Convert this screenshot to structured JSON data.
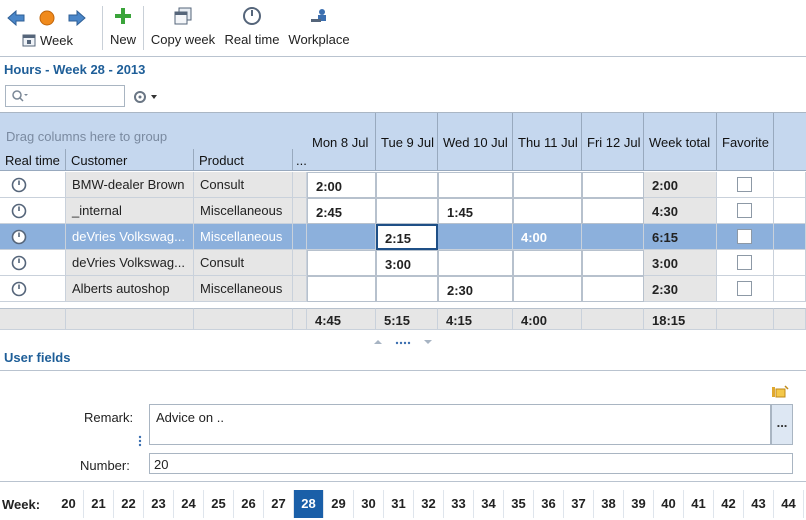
{
  "toolbar": {
    "week_label": "Week",
    "new_label": "New",
    "copy_week_label": "Copy week",
    "real_time_label": "Real time",
    "workplace_label": "Workplace",
    "colors": {
      "back_arrow": "#4a86c8",
      "forward_arrow": "#4a86c8",
      "record": "#f08a1c",
      "new_plus": "#3aa43a"
    }
  },
  "page": {
    "title": "Hours - Week 28 - 2013"
  },
  "search": {
    "placeholder": ""
  },
  "grid": {
    "group_hint": "Drag columns here to group",
    "columns": {
      "real_time": "Real time",
      "customer": "Customer",
      "product": "Product",
      "more": "...",
      "mon": "Mon 8 Jul",
      "tue": "Tue 9 Jul",
      "wed": "Wed 10 Jul",
      "thu": "Thu 11 Jul",
      "fri": "Fri 12 Jul",
      "week_total": "Week total",
      "favorite": "Favorite"
    },
    "rows": [
      {
        "customer": "BMW-dealer Brown",
        "product": "Consult",
        "mon": "2:00",
        "tue": "",
        "wed": "",
        "thu": "",
        "fri": "",
        "total": "2:00",
        "favorite": false
      },
      {
        "customer": "_internal",
        "product": "Miscellaneous",
        "mon": "2:45",
        "tue": "",
        "wed": "1:45",
        "thu": "",
        "fri": "",
        "total": "4:30",
        "favorite": false
      },
      {
        "customer": "deVries Volkswag...",
        "product": "Miscellaneous",
        "mon": "",
        "tue": "2:15",
        "wed": "",
        "thu": "4:00",
        "fri": "",
        "total": "6:15",
        "favorite": false,
        "selected": true
      },
      {
        "customer": "deVries Volkswag...",
        "product": "Consult",
        "mon": "",
        "tue": "3:00",
        "wed": "",
        "thu": "",
        "fri": "",
        "total": "3:00",
        "favorite": false
      },
      {
        "customer": "Alberts autoshop",
        "product": "Miscellaneous",
        "mon": "",
        "tue": "",
        "wed": "2:30",
        "thu": "",
        "fri": "",
        "total": "2:30",
        "favorite": false
      }
    ],
    "totals": {
      "mon": "4:45",
      "tue": "5:15",
      "wed": "4:15",
      "thu": "4:00",
      "fri": "",
      "total": "18:15"
    }
  },
  "user_fields": {
    "title": "User fields",
    "remark_label": "Remark:",
    "remark_value": "Advice on ..",
    "remark_more": "...",
    "number_label": "Number:",
    "number_value": "20"
  },
  "week_bar": {
    "label": "Week:",
    "weeks": [
      "20",
      "21",
      "22",
      "23",
      "24",
      "25",
      "26",
      "27",
      "28",
      "29",
      "30",
      "31",
      "32",
      "33",
      "34",
      "35",
      "36",
      "37",
      "38",
      "39",
      "40",
      "41",
      "42",
      "43",
      "44"
    ],
    "active": "28"
  }
}
